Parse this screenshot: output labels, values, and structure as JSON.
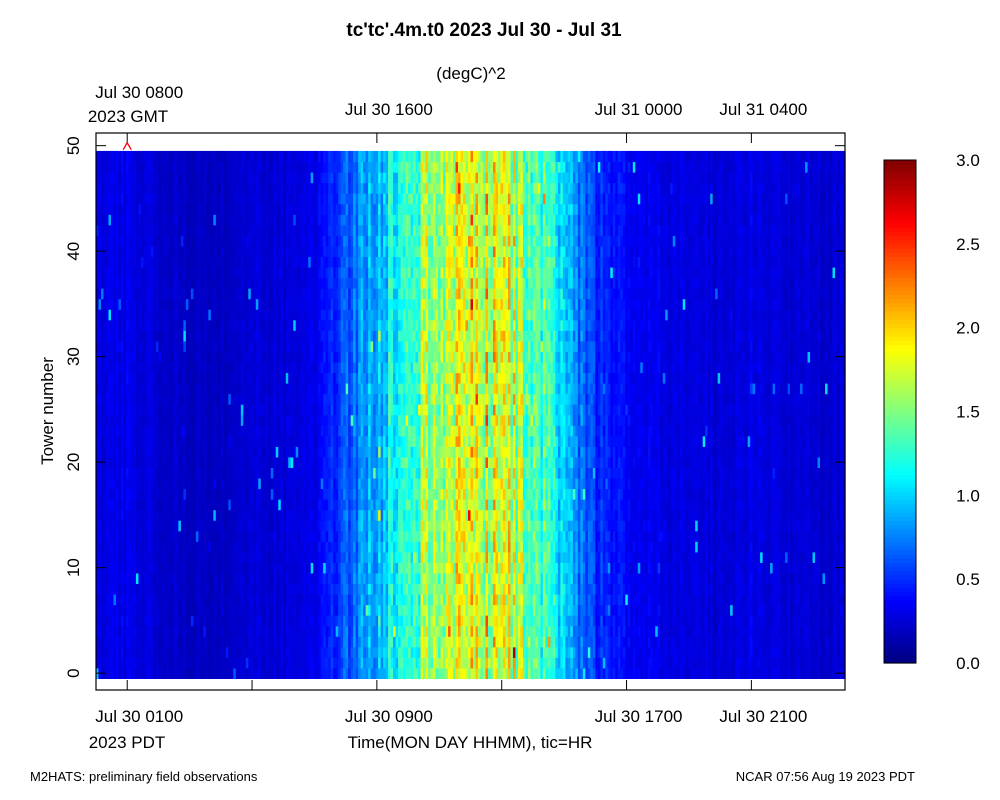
{
  "chart_data": {
    "type": "heatmap",
    "title": "tc'tc'.4m.t0 2023 Jul 30 - Jul 31",
    "units_label": "(degC)^2",
    "ylabel": "Tower number",
    "xlabel": "Time(MON DAY HHMM), tic=HR",
    "y_ticks": [
      0,
      10,
      20,
      30,
      40,
      50
    ],
    "ylim": [
      -1.6,
      51.2
    ],
    "y_data_range": [
      0,
      49
    ],
    "bottom_axis": {
      "ticks": [
        {
          "label": "Jul 30 0100",
          "hour": 1,
          "labeled": true
        },
        {
          "label": "",
          "hour": 5,
          "labeled": false
        },
        {
          "label": "Jul 30 0900",
          "hour": 9,
          "labeled": true
        },
        {
          "label": "",
          "hour": 13,
          "labeled": false
        },
        {
          "label": "Jul 30 1700",
          "hour": 17,
          "labeled": true
        },
        {
          "label": "Jul 30 2100",
          "hour": 21,
          "labeled": true
        }
      ],
      "sublabel": "2023 PDT"
    },
    "top_axis": {
      "ticks": [
        {
          "label": "Jul 30 0800",
          "hour": 1
        },
        {
          "label": "Jul 30 1600",
          "hour": 9
        },
        {
          "label": "Jul 31 0000",
          "hour": 17
        },
        {
          "label": "Jul 31 0400",
          "hour": 21
        }
      ],
      "sublabel": "2023 GMT"
    },
    "x_range_hours_pdt": [
      0,
      24
    ],
    "x_data_range_hours_pdt": [
      0,
      24
    ],
    "colorbar": {
      "ticks": [
        "3.0",
        "2.5",
        "2.0",
        "1.5",
        "1.0",
        "0.5",
        "0.0"
      ],
      "range": [
        0.0,
        3.0
      ],
      "colormap": "jet"
    },
    "time_profile": {
      "hours_pdt": [
        0,
        1,
        2,
        3,
        4,
        5,
        6,
        7,
        8,
        9,
        10,
        11,
        12,
        13,
        14,
        15,
        16,
        17,
        18,
        19,
        20,
        21,
        22,
        23,
        24
      ],
      "typical_value": [
        0.3,
        0.3,
        0.25,
        0.2,
        0.2,
        0.25,
        0.25,
        0.3,
        0.6,
        0.95,
        1.3,
        1.7,
        1.85,
        1.75,
        1.5,
        0.95,
        0.5,
        0.35,
        0.3,
        0.3,
        0.25,
        0.3,
        0.25,
        0.25,
        0.25
      ]
    },
    "marker": {
      "shape": "triangle",
      "color": "#ff0000",
      "hour": 1,
      "tower": 50
    }
  },
  "footer": {
    "left": "M2HATS: preliminary field observations",
    "right": "NCAR 07:56 Aug 19 2023 PDT"
  }
}
